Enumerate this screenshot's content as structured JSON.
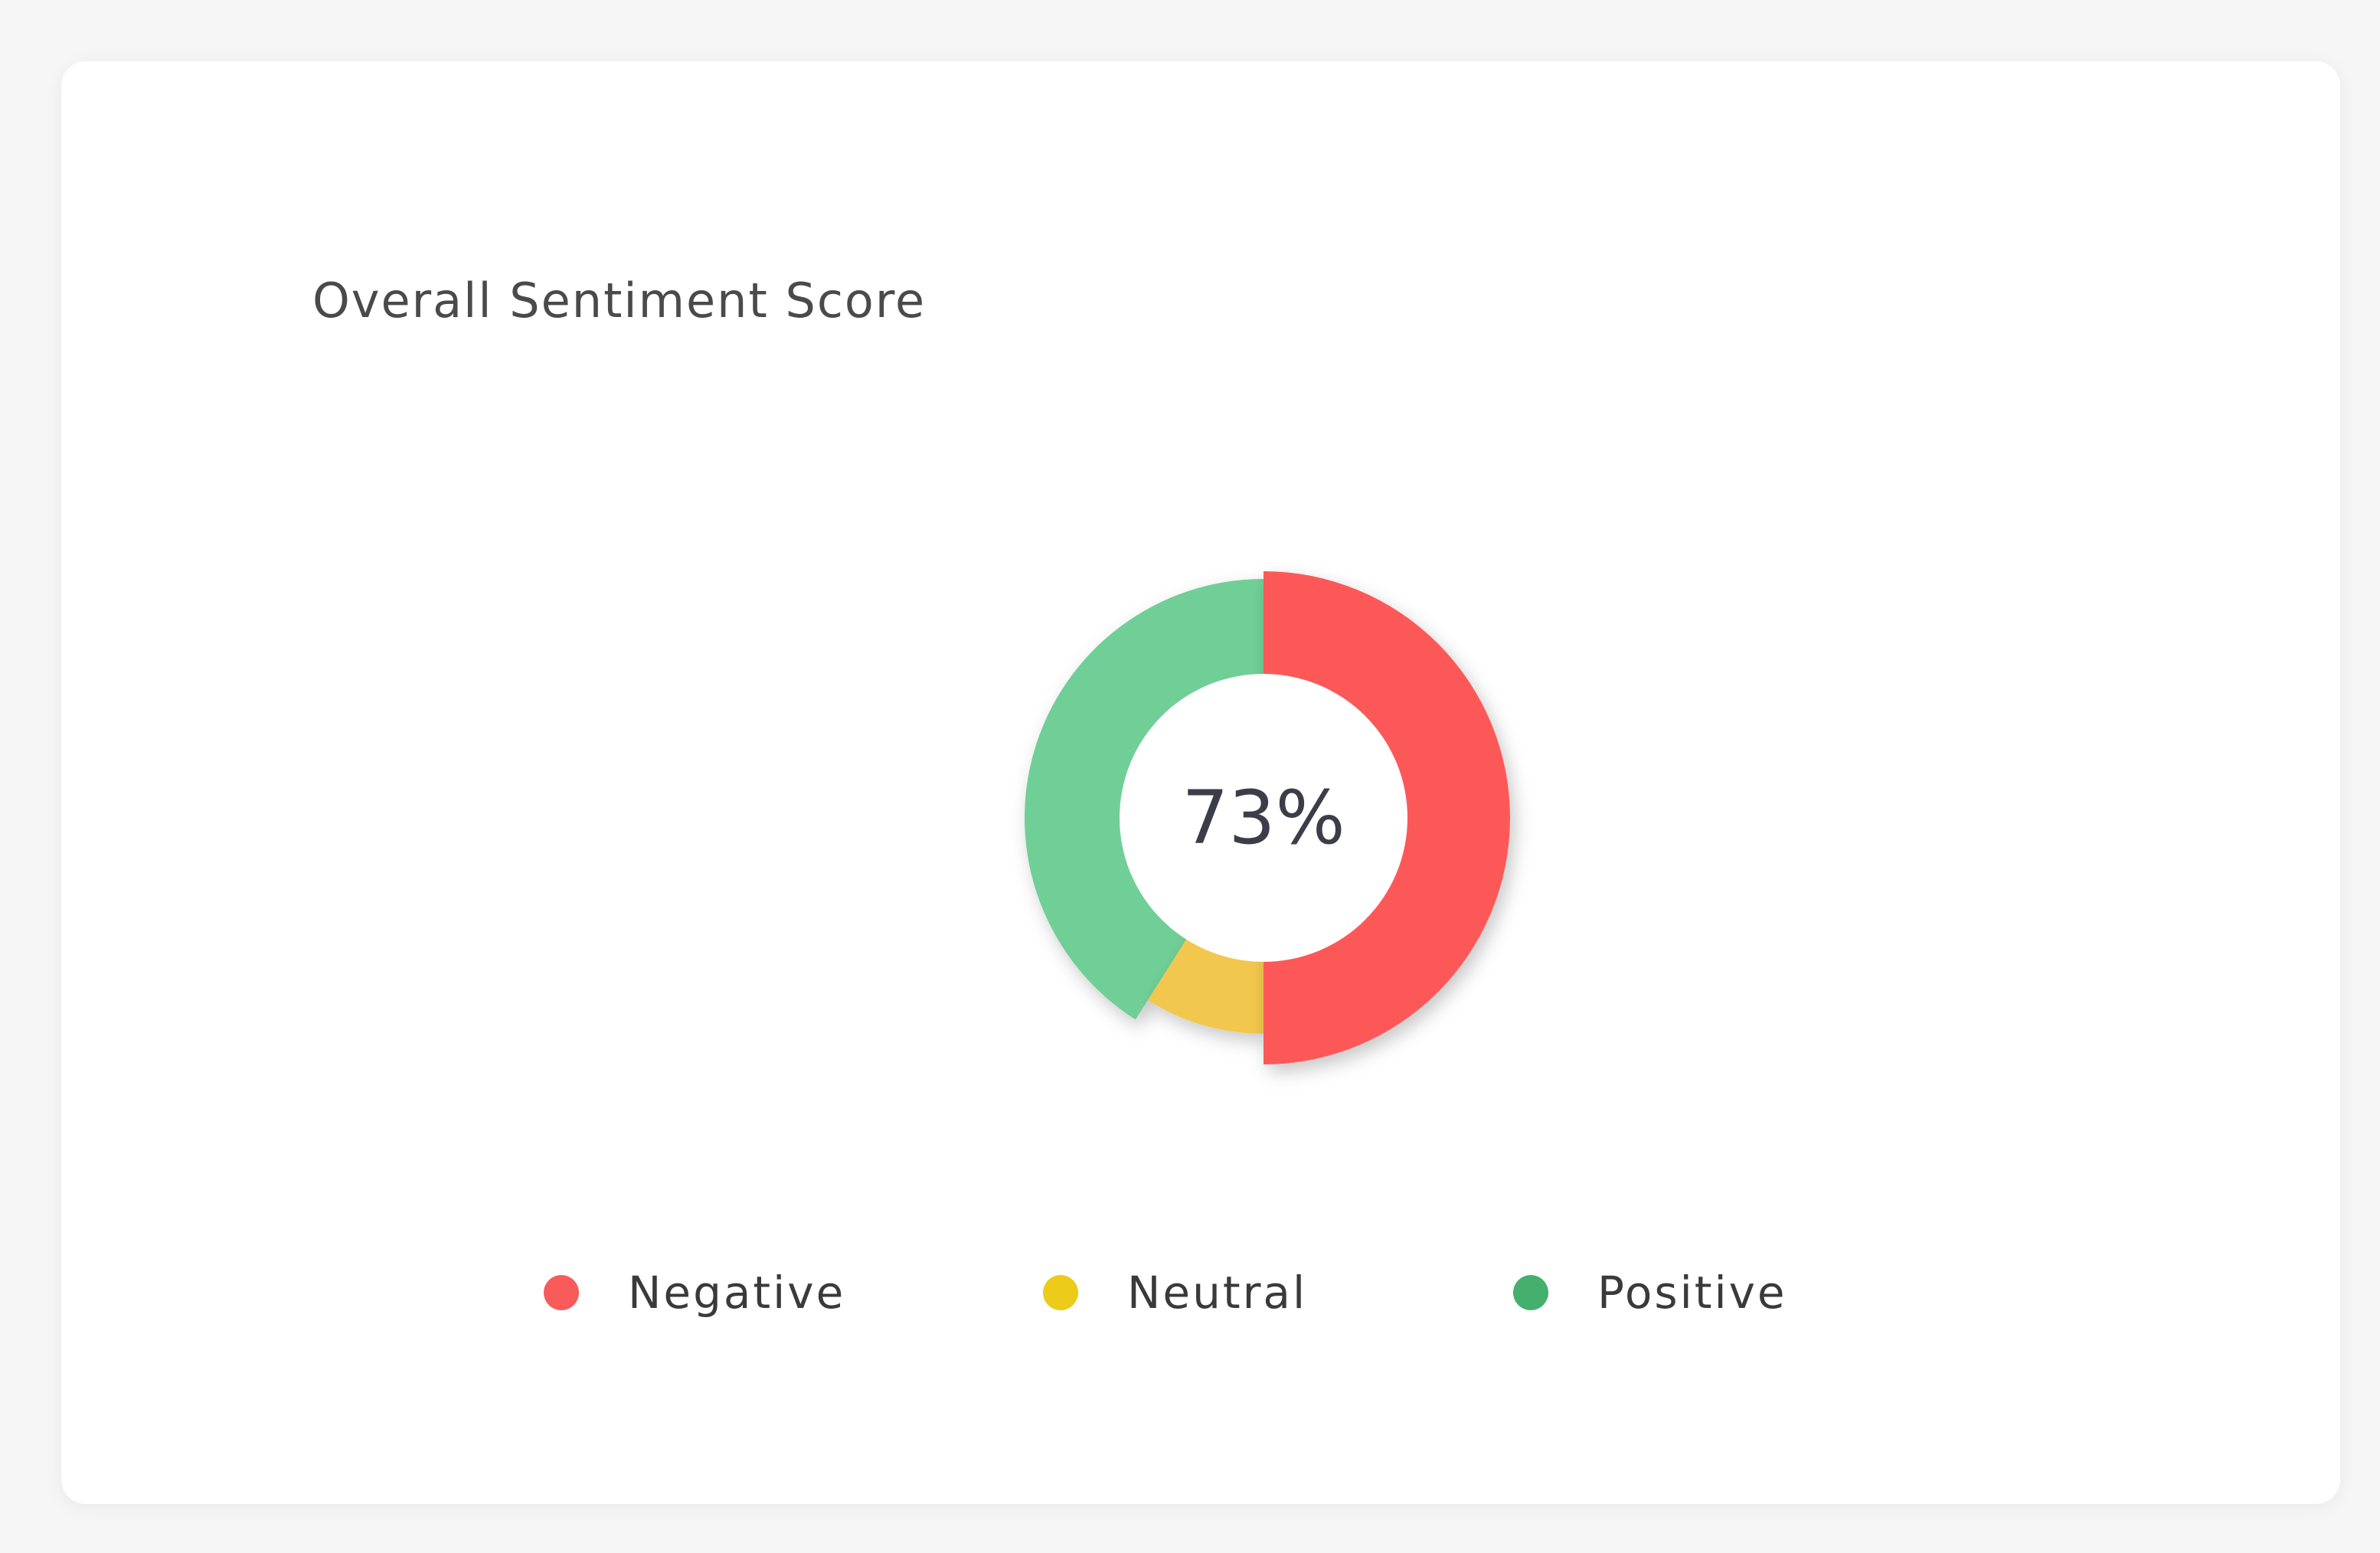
{
  "card": {
    "title": "Overall Sentiment Score"
  },
  "chart_data": {
    "type": "pie",
    "variant": "donut",
    "center_label": "73%",
    "slices": [
      {
        "name": "Negative",
        "value": 50,
        "color": "#fd5858",
        "legend_color": "#f95a5a"
      },
      {
        "name": "Neutral",
        "value": 9,
        "color": "#f2c74e",
        "legend_color": "#eccb1b"
      },
      {
        "name": "Positive",
        "value": 41,
        "color": "#6fcf97",
        "legend_color": "#45b06e"
      }
    ],
    "legend_position": "bottom"
  }
}
